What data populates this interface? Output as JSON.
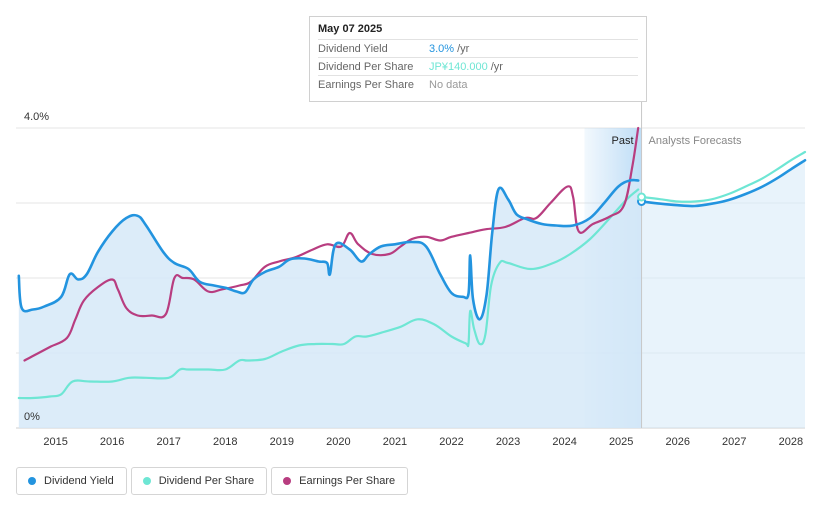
{
  "tooltip": {
    "date": "May 07 2025",
    "rows": [
      {
        "name": "Dividend Yield",
        "value": "3.0%",
        "unit": "/yr",
        "color": "#2394df"
      },
      {
        "name": "Dividend Per Share",
        "value": "JP¥140.000",
        "unit": "/yr",
        "color": "#6ee6d4"
      },
      {
        "name": "Earnings Per Share",
        "value": "No data",
        "unit": "",
        "color": "#999999"
      }
    ]
  },
  "legend": [
    {
      "label": "Dividend Yield",
      "color": "#2394df"
    },
    {
      "label": "Dividend Per Share",
      "color": "#6ee6d4"
    },
    {
      "label": "Earnings Per Share",
      "color": "#b83d80"
    }
  ],
  "chart_data": {
    "type": "line",
    "title": "",
    "y_top_label": "4.0%",
    "y_bottom_label": "0%",
    "ylim": [
      0,
      4.0
    ],
    "xlim": [
      2014.3,
      2028.25
    ],
    "x_ticks": [
      "2015",
      "2016",
      "2017",
      "2018",
      "2019",
      "2020",
      "2021",
      "2022",
      "2023",
      "2024",
      "2025",
      "2026",
      "2027",
      "2028"
    ],
    "past_label": "Past",
    "forecast_label": "Analysts Forecasts",
    "past_end": 2025.36,
    "forecast_band_start": 2024.35,
    "colors": {
      "yield": "#2394df",
      "dps": "#6ee6d4",
      "eps": "#b83d80",
      "area": "#d6e9f8",
      "band": "#a9d2f3"
    },
    "series": [
      {
        "name": "Dividend Yield",
        "unit": "%",
        "x": [
          2014.35,
          2014.4,
          2014.6,
          2014.8,
          2015.1,
          2015.25,
          2015.4,
          2015.55,
          2015.75,
          2016.0,
          2016.25,
          2016.45,
          2016.6,
          2016.9,
          2017.1,
          2017.35,
          2017.55,
          2017.8,
          2018.0,
          2018.2,
          2018.35,
          2018.5,
          2018.7,
          2018.95,
          2019.15,
          2019.4,
          2019.65,
          2019.8,
          2019.85,
          2019.95,
          2020.2,
          2020.4,
          2020.55,
          2020.75,
          2021.0,
          2021.3,
          2021.55,
          2021.8,
          2022.0,
          2022.2,
          2022.3,
          2022.33,
          2022.38,
          2022.5,
          2022.62,
          2022.72,
          2022.83,
          2023.0,
          2023.15,
          2023.35,
          2023.6,
          2023.85,
          2024.15,
          2024.45,
          2024.7,
          2024.95,
          2025.15,
          2025.3
        ],
        "values": [
          2.03,
          1.6,
          1.58,
          1.62,
          1.75,
          2.05,
          1.98,
          2.05,
          2.35,
          2.62,
          2.8,
          2.83,
          2.7,
          2.35,
          2.2,
          2.12,
          1.95,
          1.9,
          1.87,
          1.82,
          1.81,
          1.98,
          2.08,
          2.15,
          2.25,
          2.26,
          2.22,
          2.2,
          2.05,
          2.45,
          2.38,
          2.22,
          2.32,
          2.42,
          2.45,
          2.48,
          2.42,
          2.05,
          1.8,
          1.75,
          1.79,
          2.3,
          1.72,
          1.45,
          1.78,
          2.6,
          3.18,
          3.05,
          2.85,
          2.78,
          2.72,
          2.7,
          2.7,
          2.8,
          3.0,
          3.22,
          3.3,
          3.3
        ]
      },
      {
        "name": "Dividend Yield Forecast",
        "unit": "%",
        "x": [
          2025.36,
          2025.7,
          2026.0,
          2026.3,
          2026.6,
          2026.9,
          2027.2,
          2027.5,
          2027.8,
          2028.0,
          2028.25
        ],
        "values": [
          3.02,
          2.99,
          2.97,
          2.96,
          2.99,
          3.04,
          3.12,
          3.22,
          3.35,
          3.45,
          3.57
        ]
      },
      {
        "name": "Dividend Per Share",
        "unit": "JPY",
        "x": [
          2014.35,
          2014.6,
          2014.9,
          2015.1,
          2015.3,
          2015.6,
          2016.0,
          2016.3,
          2016.6,
          2017.0,
          2017.2,
          2017.35,
          2017.7,
          2018.0,
          2018.25,
          2018.4,
          2018.7,
          2019.0,
          2019.3,
          2019.6,
          2019.9,
          2020.1,
          2020.3,
          2020.5,
          2020.8,
          2021.1,
          2021.4,
          2021.7,
          2022.0,
          2022.25,
          2022.3,
          2022.33,
          2022.4,
          2022.5,
          2022.6,
          2022.7,
          2022.85,
          2023.0,
          2023.4,
          2023.8,
          2024.1,
          2024.45,
          2024.8,
          2025.1,
          2025.3
        ],
        "values": [
          0.4,
          0.4,
          0.42,
          0.45,
          0.62,
          0.62,
          0.62,
          0.67,
          0.67,
          0.67,
          0.78,
          0.78,
          0.78,
          0.78,
          0.9,
          0.9,
          0.92,
          1.02,
          1.1,
          1.12,
          1.12,
          1.12,
          1.22,
          1.22,
          1.28,
          1.35,
          1.45,
          1.38,
          1.22,
          1.13,
          1.13,
          1.56,
          1.32,
          1.12,
          1.25,
          1.9,
          2.2,
          2.2,
          2.12,
          2.2,
          2.32,
          2.52,
          2.8,
          3.05,
          3.18
        ]
      },
      {
        "name": "Dividend Per Share Forecast",
        "unit": "JPY",
        "x": [
          2025.36,
          2025.7,
          2026.0,
          2026.3,
          2026.6,
          2026.9,
          2027.2,
          2027.5,
          2027.8,
          2028.0,
          2028.25
        ],
        "values": [
          3.08,
          3.05,
          3.02,
          3.02,
          3.05,
          3.12,
          3.22,
          3.33,
          3.47,
          3.57,
          3.68
        ]
      },
      {
        "name": "Earnings Per Share",
        "unit": "JPY",
        "x": [
          2014.45,
          2014.7,
          2014.9,
          2015.2,
          2015.35,
          2015.5,
          2015.75,
          2016.0,
          2016.1,
          2016.25,
          2016.45,
          2016.7,
          2016.95,
          2017.1,
          2017.25,
          2017.45,
          2017.7,
          2017.95,
          2018.25,
          2018.45,
          2018.7,
          2018.95,
          2019.25,
          2019.55,
          2019.8,
          2020.05,
          2020.2,
          2020.35,
          2020.6,
          2020.9,
          2021.1,
          2021.3,
          2021.55,
          2021.8,
          2022.0,
          2022.3,
          2022.6,
          2022.95,
          2023.3,
          2023.5,
          2023.75,
          2024.05,
          2024.15,
          2024.25,
          2024.5,
          2024.8,
          2025.05,
          2025.2,
          2025.3
        ],
        "values": [
          0.9,
          1.0,
          1.08,
          1.2,
          1.45,
          1.7,
          1.88,
          1.98,
          1.85,
          1.6,
          1.5,
          1.5,
          1.52,
          2.0,
          2.0,
          1.98,
          1.82,
          1.85,
          1.9,
          1.95,
          2.15,
          2.22,
          2.28,
          2.38,
          2.45,
          2.42,
          2.6,
          2.45,
          2.32,
          2.32,
          2.42,
          2.52,
          2.55,
          2.5,
          2.55,
          2.6,
          2.65,
          2.68,
          2.8,
          2.8,
          3.0,
          3.22,
          3.08,
          2.62,
          2.72,
          2.82,
          2.97,
          3.5,
          4.0
        ]
      }
    ]
  }
}
